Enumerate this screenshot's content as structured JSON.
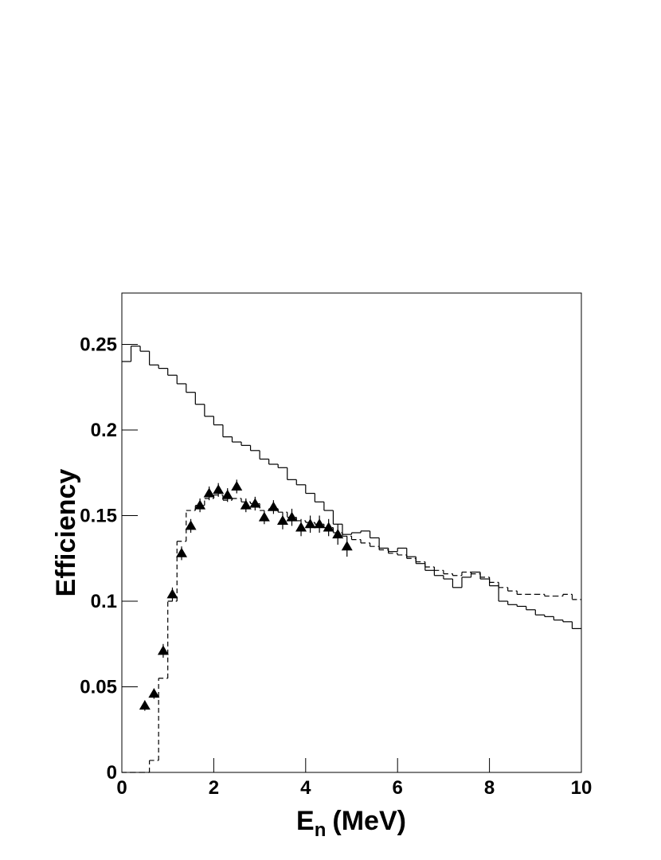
{
  "chart_data": {
    "type": "histogram",
    "y_label": "Efficiency",
    "x_label": "E",
    "x_label_subscript": "n",
    "x_label_unit": "(MeV)",
    "xlim": [
      0,
      10
    ],
    "ylim": [
      0,
      0.28
    ],
    "xticks": [
      0,
      2,
      4,
      6,
      8,
      10
    ],
    "yticks": [
      0,
      0.05,
      0.1,
      0.15,
      0.2,
      0.25
    ],
    "bins": [
      0,
      0.2,
      0.4,
      0.6,
      0.8,
      1,
      1.2,
      1.4,
      1.6,
      1.8,
      2,
      2.2,
      2.4,
      2.6,
      2.8,
      3,
      3.2,
      3.4,
      3.6,
      3.8,
      4,
      4.2,
      4.4,
      4.6,
      4.8,
      5,
      5.2,
      5.4,
      5.6,
      5.8,
      6,
      6.2,
      6.4,
      6.6,
      6.8,
      7,
      7.2,
      7.4,
      7.6,
      7.8,
      8,
      8.2,
      8.4,
      8.6,
      8.8,
      9,
      9.2,
      9.4,
      9.6,
      9.8,
      10
    ],
    "series": [
      {
        "color": "#000000",
        "line_style": "solid",
        "values": [
          0.24,
          0.249,
          0.246,
          0.238,
          0.236,
          0.232,
          0.227,
          0.222,
          0.215,
          0.208,
          0.203,
          0.196,
          0.193,
          0.191,
          0.188,
          0.183,
          0.18,
          0.178,
          0.171,
          0.168,
          0.163,
          0.158,
          0.153,
          0.145,
          0.139,
          0.14,
          0.141,
          0.137,
          0.131,
          0.129,
          0.131,
          0.126,
          0.122,
          0.118,
          0.115,
          0.113,
          0.108,
          0.114,
          0.117,
          0.113,
          0.109,
          0.1,
          0.098,
          0.097,
          0.095,
          0.092,
          0.091,
          0.089,
          0.088,
          0.084
        ]
      },
      {
        "color": "#000000",
        "line_style": "dashed",
        "values": [
          0,
          0,
          0,
          0.007,
          0.055,
          0.1,
          0.135,
          0.153,
          0.156,
          0.16,
          0.162,
          0.159,
          0.16,
          0.158,
          0.157,
          0.153,
          0.154,
          0.152,
          0.149,
          0.147,
          0.146,
          0.145,
          0.143,
          0.14,
          0.138,
          0.136,
          0.134,
          0.132,
          0.13,
          0.128,
          0.127,
          0.125,
          0.123,
          0.12,
          0.118,
          0.116,
          0.115,
          0.117,
          0.116,
          0.114,
          0.111,
          0.108,
          0.106,
          0.104,
          0.104,
          0.104,
          0.103,
          0.103,
          0.104,
          0.101
        ]
      }
    ],
    "points": {
      "color": "#000000",
      "x": [
        0.5,
        0.7,
        0.9,
        1.1,
        1.3,
        1.5,
        1.7,
        1.9,
        2.1,
        2.3,
        2.5,
        2.7,
        2.9,
        3.1,
        3.3,
        3.5,
        3.7,
        3.9,
        4.1,
        4.3,
        4.5,
        4.7,
        4.9
      ],
      "values": [
        0.039,
        0.046,
        0.071,
        0.104,
        0.128,
        0.144,
        0.156,
        0.163,
        0.165,
        0.162,
        0.167,
        0.156,
        0.157,
        0.149,
        0.155,
        0.147,
        0.149,
        0.143,
        0.145,
        0.145,
        0.143,
        0.139,
        0.132
      ],
      "errors": [
        0.003,
        0.003,
        0.004,
        0.004,
        0.004,
        0.004,
        0.004,
        0.004,
        0.004,
        0.004,
        0.004,
        0.004,
        0.004,
        0.004,
        0.004,
        0.005,
        0.005,
        0.005,
        0.005,
        0.005,
        0.005,
        0.006,
        0.006
      ]
    }
  }
}
